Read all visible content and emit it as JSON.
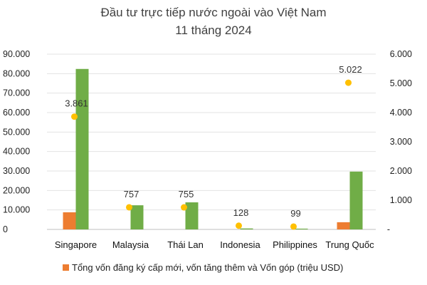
{
  "chart_data": {
    "type": "bar",
    "title": [
      "Đầu tư trực tiếp nước ngoài vào Việt Nam",
      "11 tháng 2024"
    ],
    "categories": [
      "Singapore",
      "Malaysia",
      "Thái Lan",
      "Indonesia",
      "Philippines",
      "Trung Quốc"
    ],
    "left_axis": {
      "min": 0,
      "max": 90000,
      "ticks": [
        "0",
        "10.000",
        "20.000",
        "30.000",
        "40.000",
        "50.000",
        "60.000",
        "70.000",
        "80.000",
        "90.000"
      ]
    },
    "right_axis": {
      "min": 0,
      "max": 6000,
      "ticks": [
        "-",
        "1.000",
        "2.000",
        "3.000",
        "4.000",
        "5.000",
        "6.000"
      ]
    },
    "grid": true,
    "legend_position": "bottom",
    "series": [
      {
        "name": "Tổng vốn đăng ký cấp mới, vốn tăng thêm và Vốn góp (triệu USD)",
        "type": "bar",
        "axis": "left",
        "color": "#ED7D31",
        "values": [
          8800,
          0,
          0,
          0,
          0,
          3700
        ]
      },
      {
        "type": "bar",
        "axis": "left",
        "color": "#70AD47",
        "values": [
          82400,
          12400,
          13900,
          500,
          400,
          29700
        ]
      },
      {
        "type": "scatter",
        "axis": "right",
        "color": "#FFC000",
        "values": [
          3861,
          757,
          755,
          128,
          99,
          5022
        ],
        "labels": [
          "3.861",
          "757",
          "755",
          "128",
          "99",
          "5.022"
        ]
      }
    ]
  }
}
